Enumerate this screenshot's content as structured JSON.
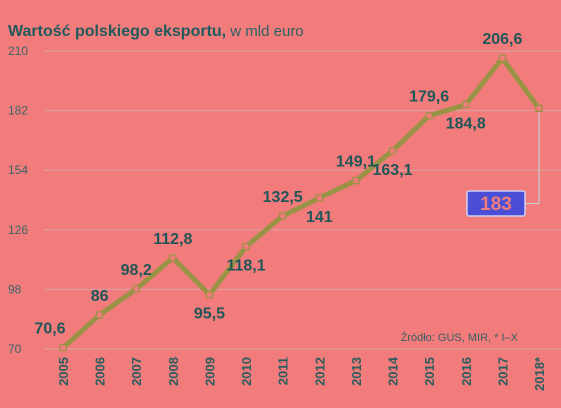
{
  "chart_title": "Wartość polskiego eksportu,",
  "chart_unit": " w mld euro",
  "source_note": "Źródło: GUS, MIR, * I–X",
  "colors": {
    "background": "#f27c7c",
    "line": "#9a9244",
    "marker": "#f27c7c",
    "label": "#1f5658",
    "highlight_box": "#4b4fd6",
    "highlight_text": "#f27c7c",
    "connector": "#c9c9c9"
  },
  "chart_data": {
    "type": "line",
    "title": "Wartość polskiego eksportu, w mld euro",
    "xlabel": "",
    "ylabel": "",
    "x": [
      "2005",
      "2006",
      "2007",
      "2008",
      "2009",
      "2010",
      "2011",
      "2012",
      "2013",
      "2014",
      "2015",
      "2016",
      "2017",
      "2018*"
    ],
    "series": [
      {
        "values": [
          70.6,
          86,
          98.2,
          112.8,
          95.5,
          118.1,
          132.5,
          141,
          149.1,
          163.1,
          179.6,
          184.8,
          206.6,
          183
        ]
      }
    ],
    "point_labels": [
      "70,6",
      "86",
      "98,2",
      "112,8",
      "95,5",
      "118,1",
      "132,5",
      "141",
      "149,1",
      "163,1",
      "179,6",
      "184,8",
      "206,6",
      "183"
    ],
    "label_placement": [
      "above",
      "above",
      "above",
      "above",
      "below",
      "below",
      "above",
      "below",
      "above",
      "below",
      "above",
      "below",
      "above",
      "callout"
    ],
    "ylim": [
      70,
      210
    ],
    "yticks": [
      "70",
      "98",
      "126",
      "154",
      "182",
      "210"
    ],
    "grid": true
  }
}
